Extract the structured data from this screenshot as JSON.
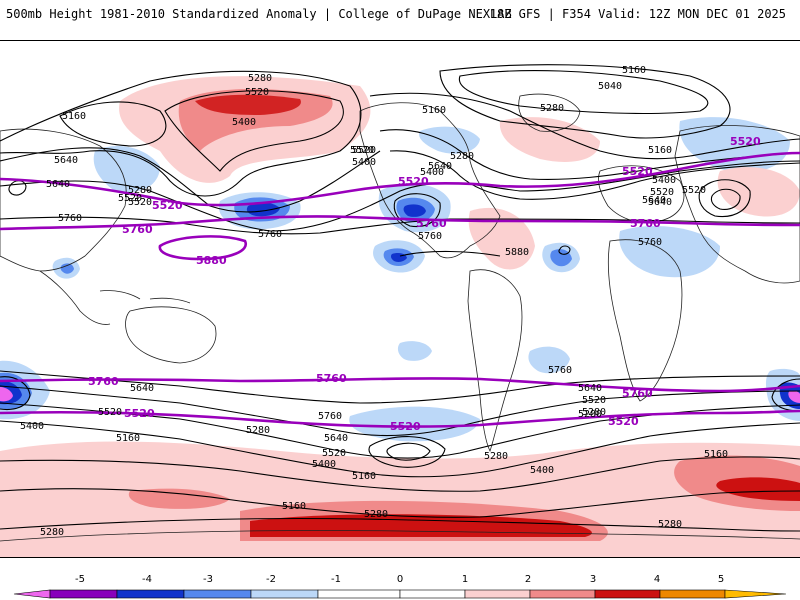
{
  "header": {
    "title_left": "500mb Height 1981-2010 Standardized Anomaly | College of DuPage NEXLAB",
    "title_right": "18Z GFS | F354 Valid: 12Z MON DEC 01 2025"
  },
  "colors": {
    "purple_contour": "#9900bb",
    "black_contour": "#000000",
    "coast": "#222222",
    "anom_neg5": "#ee66ee",
    "anom_neg4": "#8800bb",
    "anom_neg3": "#1133cc",
    "anom_neg2": "#5588ee",
    "anom_neg1": "#bcd8f8",
    "anom_pos1": "#fbd0d0",
    "anom_pos2": "#f08a8a",
    "anom_pos3": "#cc1111",
    "anom_pos4": "#ee8800",
    "anom_pos5": "#ffbb00"
  },
  "colorbar": {
    "ticks": [
      "-5",
      "-4",
      "-3",
      "-2",
      "-1",
      "0",
      "1",
      "2",
      "3",
      "4",
      "5"
    ]
  },
  "contour_labels": {
    "black": [
      "5280",
      "5520",
      "5160",
      "5400",
      "5640",
      "5280",
      "5520",
      "5520",
      "5400",
      "5640",
      "5760",
      "5160",
      "5040",
      "5520",
      "5400",
      "5160",
      "5280",
      "5280",
      "5520",
      "5640",
      "5760",
      "5880",
      "5520",
      "5160",
      "5400",
      "5640",
      "5760",
      "5640",
      "5520",
      "5760",
      "5640",
      "5520",
      "5400",
      "5400",
      "5280",
      "5160",
      "5160",
      "5280",
      "5280",
      "5760",
      "5640",
      "5520",
      "5400",
      "5280",
      "5160",
      "5280",
      "5160",
      "5280",
      "5760",
      "5640",
      "5520",
      "5280"
    ],
    "purple": [
      "5520",
      "5760",
      "5880",
      "5520",
      "5760",
      "5520",
      "5760",
      "5520",
      "5760",
      "5760",
      "5520",
      "5520",
      "5760",
      "5520"
    ]
  }
}
